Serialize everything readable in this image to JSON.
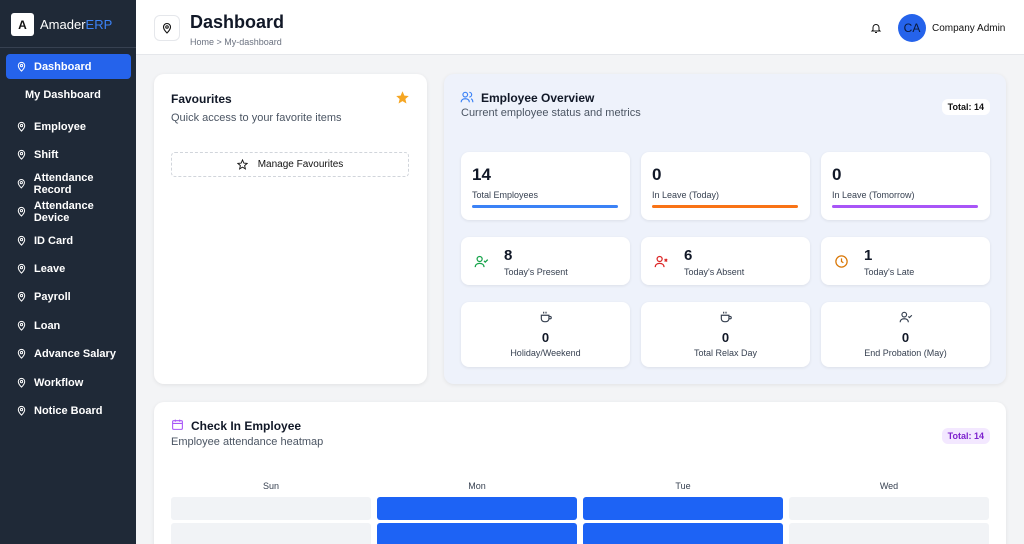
{
  "sidebar": {
    "logo": {
      "letter": "A",
      "name": "Amader",
      "suffix": "ERP"
    },
    "menu": [
      "Dashboard",
      "My Dashboard",
      "Employee",
      "Shift",
      "Attendance Record",
      "Attendance Device",
      "ID Card",
      "Leave",
      "Payroll",
      "Loan",
      "Advance Salary",
      "Workflow",
      "Notice Board"
    ]
  },
  "header": {
    "title": "Dashboard",
    "breadcrumb": "Home > My-dashboard",
    "user": {
      "initials": "CA",
      "name": "Company Admin"
    }
  },
  "favourites": {
    "title": "Favourites",
    "subtitle": "Quick access to your favorite items",
    "button": "Manage Favourites"
  },
  "employee_overview": {
    "title": "Employee Overview",
    "subtitle": "Current employee status and metrics",
    "badge": "Total: 14",
    "metrics": [
      {
        "value": 14,
        "label": "Total Employees"
      },
      {
        "value": 0,
        "label": "In Leave (Today)"
      },
      {
        "value": 0,
        "label": "In Leave (Tomorrow)"
      }
    ],
    "status": [
      {
        "value": 8,
        "label": "Today's Present"
      },
      {
        "value": 6,
        "label": "Today's Absent"
      },
      {
        "value": 1,
        "label": "Today's Late"
      }
    ],
    "other": [
      {
        "value": 0,
        "label": "Holiday/Weekend"
      },
      {
        "value": 0,
        "label": "Total Relax Day"
      },
      {
        "value": 0,
        "label": "End Probation (May)"
      }
    ]
  },
  "check_in": {
    "title": "Check In Employee",
    "subtitle": "Employee attendance heatmap",
    "badge": "Total: 14",
    "days": [
      "Sun",
      "Mon",
      "Tue",
      "Wed"
    ]
  }
}
